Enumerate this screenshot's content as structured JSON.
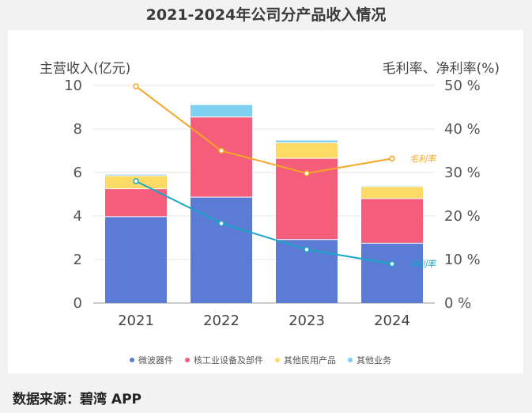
{
  "chart_data": {
    "type": "bar",
    "title": "2021-2024年公司分产品收入情况",
    "categories": [
      "2021",
      "2022",
      "2023",
      "2024"
    ],
    "ylabel": "主营收入(亿元)",
    "y2label": "毛利率、净利率(%)",
    "ylim": [
      0,
      10
    ],
    "y2lim": [
      0,
      50
    ],
    "yticks": [
      "0",
      "2",
      "4",
      "6",
      "8",
      "10"
    ],
    "y2ticks": [
      "0 %",
      "10 %",
      "20 %",
      "30 %",
      "40 %",
      "50 %"
    ],
    "stacked": true,
    "series": [
      {
        "name": "微波器件",
        "color": "#5b7bd5",
        "values": [
          3.97,
          4.87,
          2.92,
          2.75
        ]
      },
      {
        "name": "核工业设备及部件",
        "color": "#f45e7b",
        "values": [
          1.28,
          3.68,
          3.73,
          2.05
        ]
      },
      {
        "name": "其他民用产品",
        "color": "#fdd966",
        "values": [
          0.6,
          0.0,
          0.72,
          0.55
        ]
      },
      {
        "name": "其他业务",
        "color": "#7fd0ef",
        "values": [
          0.05,
          0.55,
          0.1,
          0.03
        ]
      }
    ],
    "line_series": [
      {
        "name": "毛利率",
        "color": "#f5a623",
        "values": [
          49.8,
          35.0,
          29.8,
          33.2
        ]
      },
      {
        "name": "净利率",
        "color": "#1aa7c6",
        "values": [
          28.0,
          18.3,
          12.3,
          9.0
        ]
      }
    ],
    "legend_position": "bottom"
  },
  "source_label": "数据来源：碧湾 APP"
}
